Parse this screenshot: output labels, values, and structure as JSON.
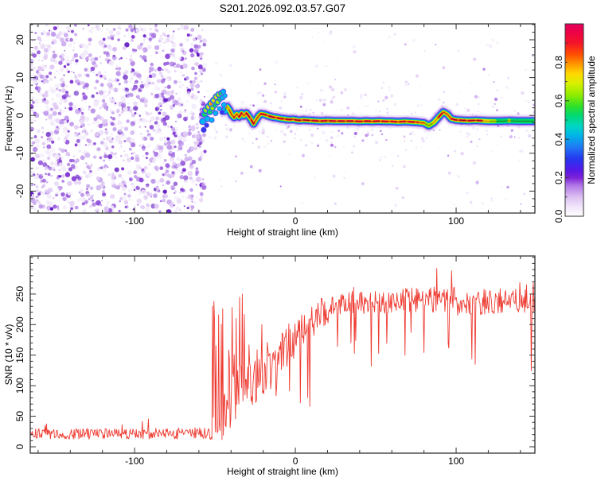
{
  "page": {
    "title": "S201.2026.092.03.57.G07"
  },
  "chart_data": [
    {
      "type": "heatmap",
      "title": "S201.2026.092.03.57.G07",
      "xlabel": "Height of straight line (km)",
      "ylabel": "Frequency (Hz)",
      "xlim": [
        -164.9,
        149.0
      ],
      "ylim": [
        -25.8,
        24.2
      ],
      "xticks": [
        -100,
        0,
        100
      ],
      "xtick_minor_step": 20,
      "yticks": [
        -20,
        -10,
        0,
        10,
        20
      ],
      "ytick_minor_step": 2,
      "grid": false,
      "colorbar": {
        "label": "Normalized spectral amplitude",
        "range": [
          0,
          1
        ],
        "ticks": [
          "0.0",
          "0.2",
          "0.4",
          "0.6",
          "0.8"
        ],
        "tick_values": [
          0,
          0.2,
          0.4,
          0.6,
          0.8
        ],
        "minor_step": 0.1,
        "stops": [
          [
            0.0,
            "#ffffff"
          ],
          [
            0.05,
            "#f0e4fa"
          ],
          [
            0.1,
            "#ddc0f2"
          ],
          [
            0.16,
            "#b077e6"
          ],
          [
            0.2,
            "#7d22d8"
          ],
          [
            0.24,
            "#5518e8"
          ],
          [
            0.3,
            "#2438f0"
          ],
          [
            0.36,
            "#1f7af4"
          ],
          [
            0.42,
            "#00b4e8"
          ],
          [
            0.47,
            "#00d8c0"
          ],
          [
            0.52,
            "#00d878"
          ],
          [
            0.57,
            "#2ce02a"
          ],
          [
            0.63,
            "#90ec00"
          ],
          [
            0.69,
            "#d8f000"
          ],
          [
            0.74,
            "#ffd800"
          ],
          [
            0.79,
            "#ff9800"
          ],
          [
            0.84,
            "#ff5000"
          ],
          [
            0.9,
            "#f41428"
          ],
          [
            0.96,
            "#ec0048"
          ],
          [
            1.0,
            "#e4005c"
          ]
        ]
      },
      "noise_field": {
        "dense": {
          "x": [
            -164.5,
            -56
          ],
          "f": [
            -25.5,
            24.0
          ],
          "count": 1500,
          "radius": [
            0.9,
            3.4
          ],
          "seed": 7,
          "palette": [
            [
              "#f2eafa",
              0.28
            ],
            [
              "#e0c9f4",
              0.26
            ],
            [
              "#c09aec",
              0.2
            ],
            [
              "#9c63de",
              0.14
            ],
            [
              "#7b2ed2",
              0.08
            ],
            [
              "#5c12c0",
              0.04
            ]
          ]
        },
        "sparse": {
          "x": [
            -56,
            149
          ],
          "f": [
            -24,
            24
          ],
          "count": 430,
          "near_trace_frac": 0.68,
          "sigma_hz": 4.6,
          "radius": [
            0.7,
            2.2
          ],
          "seed": 13,
          "palette": [
            [
              "#f3ecfb",
              0.45
            ],
            [
              "#e4d0f6",
              0.3
            ],
            [
              "#c9a2ee",
              0.18
            ],
            [
              "#a76ce2",
              0.07
            ]
          ]
        }
      },
      "onset_cluster": [
        [
          -57.6,
          -1.6,
          0.5,
          5
        ],
        [
          -57.0,
          -3.8,
          0.34,
          4
        ],
        [
          -56.4,
          0.3,
          0.55,
          5
        ],
        [
          -55.6,
          1.4,
          0.66,
          5.5
        ],
        [
          -55.2,
          -2.6,
          0.3,
          3.5
        ],
        [
          -54.8,
          -0.9,
          0.5,
          4.5
        ],
        [
          -54.0,
          2.3,
          0.76,
          5.5
        ],
        [
          -53.2,
          0.9,
          0.55,
          4.5
        ],
        [
          -52.4,
          3.1,
          0.8,
          5.5
        ],
        [
          -52.0,
          -1.2,
          0.38,
          4
        ],
        [
          -51.6,
          1.9,
          0.62,
          4.5
        ],
        [
          -50.8,
          4.0,
          0.7,
          5
        ],
        [
          -50.0,
          2.7,
          0.56,
          4
        ],
        [
          -49.6,
          0.6,
          0.42,
          4
        ],
        [
          -49.2,
          4.9,
          0.74,
          5
        ],
        [
          -48.4,
          3.5,
          0.62,
          4.5
        ],
        [
          -47.6,
          5.5,
          0.64,
          5
        ],
        [
          -47.2,
          1.8,
          0.38,
          3.5
        ],
        [
          -46.8,
          4.3,
          0.52,
          4
        ],
        [
          -46.0,
          5.9,
          0.56,
          4.5
        ],
        [
          -45.6,
          0.8,
          0.3,
          3.5
        ],
        [
          -45.2,
          4.7,
          0.46,
          4
        ],
        [
          -44.8,
          6.3,
          0.45,
          4
        ],
        [
          -44.4,
          2.8,
          0.4,
          4
        ],
        [
          -43.8,
          5.2,
          0.4,
          3.5
        ]
      ],
      "signal_trace": [
        [
          -44,
          1.2,
          0.5
        ],
        [
          -42.5,
          2.3,
          0.72
        ],
        [
          -41,
          1.4,
          0.8
        ],
        [
          -39.5,
          0.1,
          0.78
        ],
        [
          -38,
          -0.5,
          0.86
        ],
        [
          -36.5,
          0.4,
          0.8
        ],
        [
          -35,
          -0.4,
          0.9
        ],
        [
          -33.5,
          0.6,
          0.86
        ],
        [
          -32,
          -0.1,
          0.8
        ],
        [
          -30.5,
          0.6,
          0.92
        ],
        [
          -29,
          -0.2,
          0.95
        ],
        [
          -27.5,
          -1.1,
          0.9
        ],
        [
          -26,
          -2.2,
          0.95
        ],
        [
          -24.5,
          -1.2,
          0.86
        ],
        [
          -23,
          -0.2,
          0.8
        ],
        [
          -21.5,
          0.4,
          0.88
        ],
        [
          -19.5,
          0.3,
          0.92
        ],
        [
          -17.5,
          0.0,
          0.95
        ],
        [
          -15.5,
          -0.3,
          0.9
        ],
        [
          -13.5,
          -0.5,
          0.95
        ],
        [
          -11.5,
          -0.6,
          0.92
        ],
        [
          -9.5,
          -0.8,
          0.95
        ],
        [
          -7.5,
          -0.9,
          0.9
        ],
        [
          -5.5,
          -1.0,
          0.95
        ],
        [
          -3.5,
          -1.1,
          0.92
        ],
        [
          -1.5,
          -1.0,
          0.95
        ],
        [
          0.5,
          -1.2,
          0.92
        ],
        [
          2.5,
          -1.3,
          0.88
        ],
        [
          5,
          -1.2,
          0.92
        ],
        [
          8,
          -1.3,
          0.95
        ],
        [
          12,
          -1.4,
          0.92
        ],
        [
          16,
          -1.5,
          0.95
        ],
        [
          20,
          -1.4,
          0.92
        ],
        [
          24,
          -1.5,
          0.95
        ],
        [
          28,
          -1.5,
          0.9
        ],
        [
          32,
          -1.5,
          0.93
        ],
        [
          36,
          -1.5,
          0.9
        ],
        [
          40,
          -1.6,
          0.93
        ],
        [
          44,
          -1.5,
          0.95
        ],
        [
          48,
          -1.6,
          0.92
        ],
        [
          52,
          -1.5,
          0.95
        ],
        [
          56,
          -1.6,
          0.93
        ],
        [
          60,
          -1.6,
          0.95
        ],
        [
          64,
          -1.7,
          0.93
        ],
        [
          68,
          -1.6,
          0.95
        ],
        [
          72,
          -1.7,
          0.92
        ],
        [
          76,
          -1.8,
          0.88
        ],
        [
          80,
          -2.0,
          0.78
        ],
        [
          83,
          -2.7,
          0.62
        ],
        [
          86,
          -1.9,
          0.74
        ],
        [
          89,
          -0.5,
          0.88
        ],
        [
          92,
          0.9,
          0.95
        ],
        [
          94.5,
          0.3,
          0.84
        ],
        [
          97,
          -0.9,
          0.9
        ],
        [
          100,
          -1.2,
          0.95
        ],
        [
          104,
          -1.3,
          0.93
        ],
        [
          108,
          -1.4,
          0.95
        ],
        [
          112,
          -1.3,
          0.92
        ],
        [
          116,
          -1.4,
          0.86
        ],
        [
          120,
          -1.5,
          0.72
        ],
        [
          124,
          -1.5,
          0.64
        ],
        [
          128,
          -1.5,
          0.6
        ],
        [
          133,
          -1.4,
          0.62
        ],
        [
          138,
          -1.5,
          0.6
        ],
        [
          143,
          -1.5,
          0.61
        ],
        [
          149,
          -1.5,
          0.6
        ]
      ]
    },
    {
      "type": "line",
      "xlabel": "Height of straight line (km)",
      "ylabel": "SNR (10 * v/v)",
      "xlim": [
        -164.9,
        149.0
      ],
      "ylim": [
        -10.4,
        312.3
      ],
      "xticks": [
        -100,
        0,
        100
      ],
      "xtick_minor_step": 20,
      "yticks": [
        0,
        50,
        100,
        150,
        200,
        250
      ],
      "ytick_minor_step": 10,
      "grid": false,
      "color": "#ee3b32",
      "sample_step_km": 0.42,
      "seed": 20,
      "segments": [
        {
          "x": [
            -165,
            -53
          ],
          "b": [
            21,
            22
          ],
          "n": 9,
          "sp": 0.02,
          "sh": 48
        },
        {
          "x": [
            -53,
            -47
          ],
          "b": [
            26,
            45
          ],
          "n": 22,
          "sp": 0.22,
          "sh": 252
        },
        {
          "x": [
            -47,
            -40
          ],
          "b": [
            48,
            75
          ],
          "n": 42,
          "sp": 0.2,
          "sh": 250
        },
        {
          "x": [
            -40,
            -30
          ],
          "b": [
            75,
            98
          ],
          "n": 46,
          "sp": 0.15,
          "sh": 250
        },
        {
          "x": [
            -30,
            -18
          ],
          "b": [
            98,
            132
          ],
          "n": 44,
          "sp": 0.1,
          "sh": 215
        },
        {
          "x": [
            -18,
            -5
          ],
          "b": [
            132,
            168
          ],
          "n": 40,
          "sp": 0.06,
          "sh": 232,
          "dp": 0.05,
          "dl": 62
        },
        {
          "x": [
            -5,
            8
          ],
          "b": [
            165,
            198
          ],
          "n": 34,
          "sp": 0.05,
          "sh": 242,
          "dp": 0.05,
          "dl": 70
        },
        {
          "x": [
            8,
            22
          ],
          "b": [
            200,
            230
          ],
          "n": 26,
          "sp": 0.03,
          "sh": 258,
          "dp": 0.04,
          "dl": 120
        },
        {
          "x": [
            22,
            60
          ],
          "b": [
            234,
            238
          ],
          "n": 19,
          "sp": 0.03,
          "sh": 268,
          "dp": 0.035,
          "dl": 140
        },
        {
          "x": [
            60,
            100
          ],
          "b": [
            238,
            243
          ],
          "n": 21,
          "sp": 0.04,
          "sh": 288,
          "dp": 0.035,
          "dl": 150
        },
        {
          "x": [
            100,
            149
          ],
          "b": [
            236,
            240
          ],
          "n": 21,
          "sp": 0.03,
          "sh": 278,
          "dp": 0.04,
          "dl": 120
        }
      ],
      "events": [
        [
          -50.6,
          238
        ],
        [
          -45.4,
          226
        ],
        [
          -37,
          210
        ],
        [
          -33.2,
          250
        ],
        [
          -21,
          200
        ],
        [
          3,
          72
        ],
        [
          9,
          66
        ],
        [
          47,
          132
        ],
        [
          68,
          150
        ],
        [
          88,
          292
        ],
        [
          97,
          288
        ],
        [
          112,
          135
        ]
      ]
    }
  ]
}
